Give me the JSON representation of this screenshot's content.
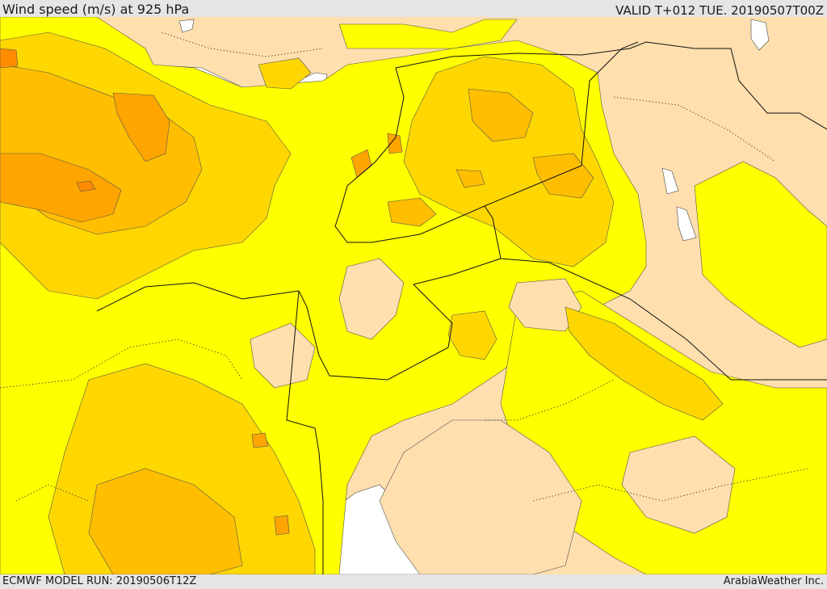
{
  "header": {
    "title": "Wind speed (m/s) at 925 hPa",
    "valid": "VALID T+012 TUE. 20190507T00Z"
  },
  "footer": {
    "model_run": "ECMWF MODEL RUN: 20190506T12Z",
    "credit": "ArabiaWeather Inc."
  },
  "colors": {
    "background_low": "#ffdfae",
    "level_yellow": "#ffff00",
    "level_gold": "#ffd700",
    "level_amber": "#ffbe00",
    "level_orange": "#ffa500",
    "level_dark_orange": "#ff8c00",
    "water_white": "#ffffff"
  }
}
